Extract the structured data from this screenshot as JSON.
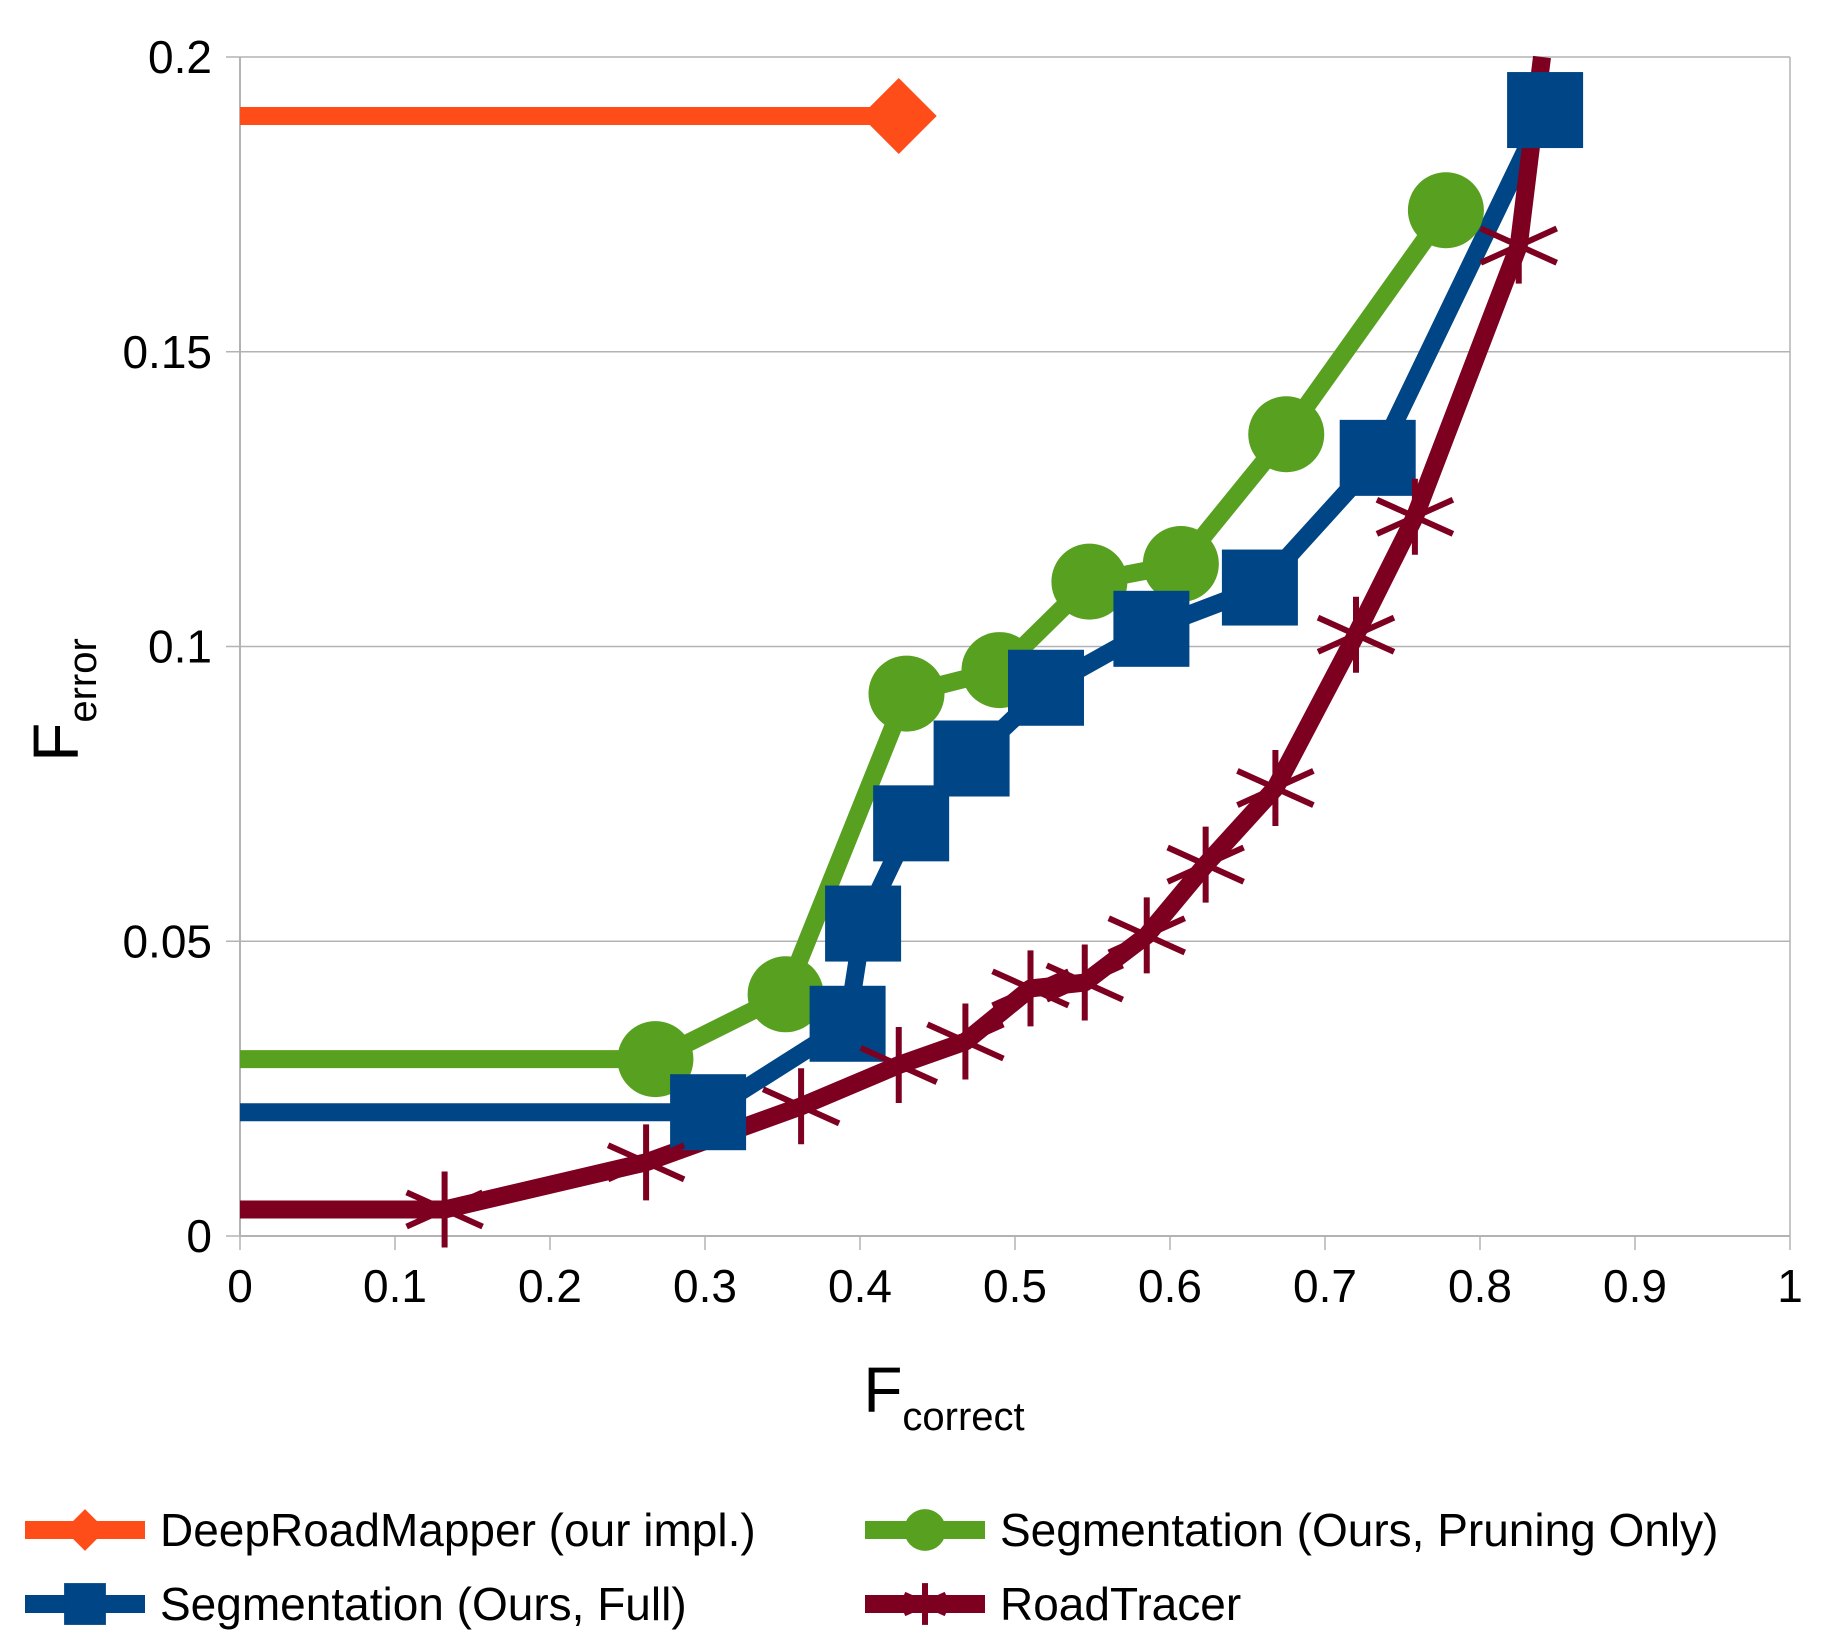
{
  "chart_data": {
    "type": "line",
    "xlabel_main": "F",
    "xlabel_sub": "correct",
    "ylabel_main": "F",
    "ylabel_sub": "error",
    "xlim": [
      0,
      1
    ],
    "ylim": [
      0,
      0.2
    ],
    "x_ticks": [
      "0",
      "0.1",
      "0.2",
      "0.3",
      "0.4",
      "0.5",
      "0.6",
      "0.7",
      "0.8",
      "0.9",
      "1"
    ],
    "y_ticks": [
      "0",
      "0.05",
      "0.1",
      "0.15",
      "0.2"
    ],
    "grid": "horizontal",
    "legend_position": "bottom",
    "series": [
      {
        "name": "DeepRoadMapper (our impl.)",
        "color": "#ff4d1a",
        "marker": "diamond",
        "x": [
          0.0,
          0.425
        ],
        "y": [
          0.19,
          0.19
        ]
      },
      {
        "name": "Segmentation (Ours, Pruning Only)",
        "color": "#57a020",
        "marker": "circle",
        "x": [
          0.0,
          0.268,
          0.352,
          0.43,
          0.49,
          0.548,
          0.607,
          0.675,
          0.778
        ],
        "y": [
          0.03,
          0.03,
          0.041,
          0.092,
          0.096,
          0.111,
          0.114,
          0.136,
          0.174
        ]
      },
      {
        "name": "Segmentation (Ours, Full)",
        "color": "#004586",
        "marker": "square",
        "x": [
          0.0,
          0.302,
          0.392,
          0.402,
          0.433,
          0.472,
          0.52,
          0.588,
          0.658,
          0.734,
          0.842
        ],
        "y": [
          0.021,
          0.021,
          0.036,
          0.053,
          0.07,
          0.081,
          0.093,
          0.103,
          0.11,
          0.132,
          0.191
        ]
      },
      {
        "name": "RoadTracer",
        "color": "#7e0021",
        "marker": "star",
        "x": [
          0.0,
          0.132,
          0.262,
          0.362,
          0.425,
          0.468,
          0.51,
          0.545,
          0.585,
          0.623,
          0.668,
          0.72,
          0.758,
          0.825,
          0.84
        ],
        "y": [
          0.0045,
          0.0045,
          0.0125,
          0.022,
          0.029,
          0.033,
          0.042,
          0.043,
          0.051,
          0.063,
          0.076,
          0.102,
          0.122,
          0.168,
          0.2
        ]
      }
    ]
  }
}
